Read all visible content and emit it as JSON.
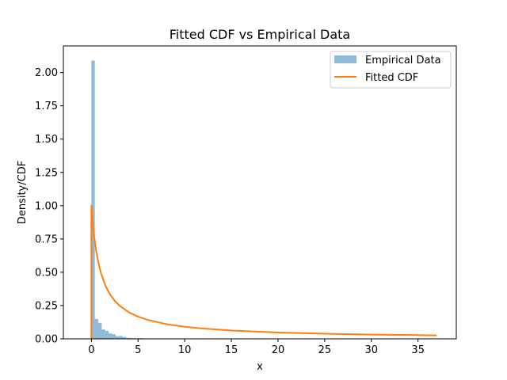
{
  "chart_data": {
    "type": "bar",
    "title": "Fitted CDF vs Empirical Data",
    "xlabel": "x",
    "ylabel": "Density/CDF",
    "xlim": [
      -3.0,
      39.1
    ],
    "ylim": [
      0,
      2.2
    ],
    "xticks": [
      0,
      5,
      10,
      15,
      20,
      25,
      30,
      35
    ],
    "xtick_labels": [
      "0",
      "5",
      "10",
      "15",
      "20",
      "25",
      "30",
      "35"
    ],
    "yticks": [
      0.0,
      0.25,
      0.5,
      0.75,
      1.0,
      1.25,
      1.5,
      1.75,
      2.0
    ],
    "ytick_labels": [
      "0.00",
      "0.25",
      "0.50",
      "0.75",
      "1.00",
      "1.25",
      "1.50",
      "1.75",
      "2.00"
    ],
    "legend_position": "top-right",
    "grid": false,
    "series": [
      {
        "name": "Empirical Data",
        "kind": "histogram",
        "color": "#1f77b4",
        "opacity": 0.5,
        "bin_width": 0.37,
        "bins": [
          {
            "x": 0.0,
            "value": 2.09
          },
          {
            "x": 0.37,
            "value": 0.15
          },
          {
            "x": 0.74,
            "value": 0.12
          },
          {
            "x": 1.11,
            "value": 0.07
          },
          {
            "x": 1.48,
            "value": 0.06
          },
          {
            "x": 1.85,
            "value": 0.04
          },
          {
            "x": 2.22,
            "value": 0.035
          },
          {
            "x": 2.59,
            "value": 0.02
          },
          {
            "x": 2.96,
            "value": 0.022
          },
          {
            "x": 3.33,
            "value": 0.015
          },
          {
            "x": 3.7,
            "value": 0.008
          },
          {
            "x": 4.07,
            "value": 0.006
          },
          {
            "x": 4.44,
            "value": 0.005
          },
          {
            "x": 4.81,
            "value": 0.004
          },
          {
            "x": 5.18,
            "value": 0.006
          },
          {
            "x": 5.55,
            "value": 0.002
          },
          {
            "x": 6.66,
            "value": 0.003
          },
          {
            "x": 7.03,
            "value": 0.002
          },
          {
            "x": 9.25,
            "value": 0.002
          },
          {
            "x": 13.69,
            "value": 0.001
          }
        ]
      },
      {
        "name": "Fitted CDF",
        "kind": "line",
        "color": "#ff7f0e",
        "x": [
          0.0,
          0.0,
          0.1,
          0.2,
          0.3,
          0.5,
          0.75,
          1.0,
          1.5,
          2.0,
          2.5,
          3.0,
          4.0,
          5.0,
          6.0,
          8.0,
          10.0,
          12.0,
          15.0,
          20.0,
          25.0,
          30.0,
          37.0
        ],
        "y": [
          0.0,
          1.0,
          0.909,
          0.833,
          0.769,
          0.667,
          0.571,
          0.5,
          0.4,
          0.333,
          0.286,
          0.25,
          0.2,
          0.167,
          0.143,
          0.111,
          0.091,
          0.077,
          0.0625,
          0.0476,
          0.0385,
          0.0323,
          0.0263
        ]
      }
    ]
  }
}
